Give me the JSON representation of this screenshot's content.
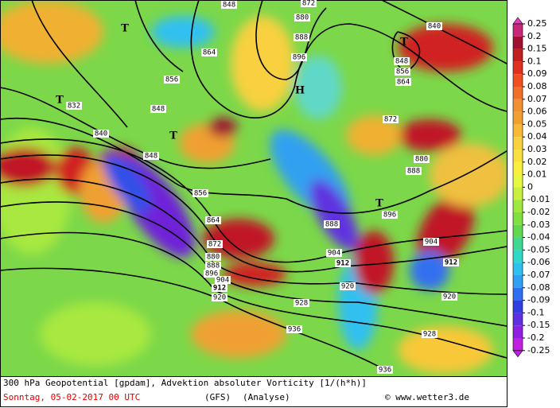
{
  "caption": {
    "title": "300 hPa Geopotential [gpdam], Advektion absoluter Vorticity [1/(h*h)]",
    "date": "Sonntag, 05-02-2017  00 UTC",
    "model": "(GFS)",
    "run": "(Analyse)",
    "credit": "© www.wetter3.de"
  },
  "legend": {
    "labels": [
      0.25,
      0.2,
      0.15,
      0.1,
      0.09,
      0.08,
      0.07,
      0.06,
      0.05,
      0.04,
      0.03,
      0.02,
      0.01,
      0,
      -0.01,
      -0.02,
      -0.03,
      -0.04,
      -0.05,
      -0.06,
      -0.07,
      -0.08,
      -0.09,
      -0.1,
      -0.15,
      -0.2,
      -0.25
    ]
  },
  "map": {
    "contour_labels": [
      848,
      872,
      880,
      888,
      896,
      840,
      864,
      856,
      848,
      856,
      864,
      832,
      840,
      848,
      848,
      872,
      880,
      888,
      856,
      864,
      872,
      880,
      888,
      896,
      904,
      912,
      920,
      888,
      896,
      904,
      904,
      912,
      912,
      920,
      920,
      928,
      928,
      936,
      936
    ],
    "centers": [
      "T",
      "T",
      "T",
      "T",
      "T",
      "H"
    ]
  }
}
